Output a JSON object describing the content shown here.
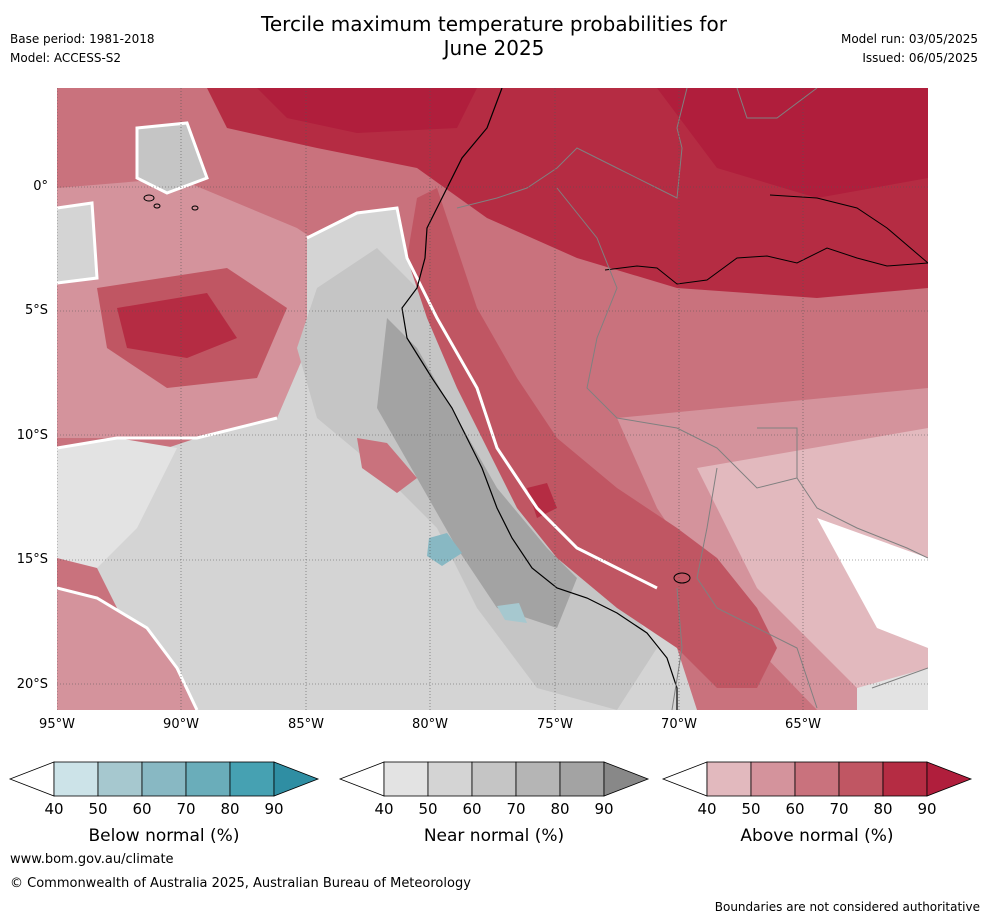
{
  "header": {
    "title_line1": "Tercile maximum temperature probabilities for",
    "title_line2": "June 2025",
    "base_period": "Base period: 1981-2018",
    "model": "Model: ACCESS-S2",
    "model_run": "Model run: 03/05/2025",
    "issued": "Issued: 06/05/2025"
  },
  "map": {
    "lat_labels": [
      "0°",
      "5°S",
      "10°S",
      "15°S",
      "20°S"
    ],
    "lon_labels": [
      "95°W",
      "90°W",
      "85°W",
      "80°W",
      "75°W",
      "70°W",
      "65°W"
    ],
    "extent": {
      "lon": [
        -95,
        -60
      ],
      "lat": [
        -21,
        4
      ]
    }
  },
  "colorbars": [
    {
      "label": "Below normal (%)",
      "ticks": [
        "40",
        "50",
        "60",
        "70",
        "80",
        "90"
      ],
      "colors": [
        "#ffffff",
        "#cce3e8",
        "#a6c8cf",
        "#88b8c3",
        "#6aadba",
        "#46a1b2",
        "#2f8ea3"
      ]
    },
    {
      "label": "Near normal (%)",
      "ticks": [
        "40",
        "50",
        "60",
        "70",
        "80",
        "90"
      ],
      "colors": [
        "#ffffff",
        "#e3e3e3",
        "#d4d4d4",
        "#c5c5c5",
        "#b5b5b5",
        "#a3a3a3",
        "#888888"
      ]
    },
    {
      "label": "Above normal (%)",
      "ticks": [
        "40",
        "50",
        "60",
        "70",
        "80",
        "90"
      ],
      "colors": [
        "#ffffff",
        "#e2b9be",
        "#d4939c",
        "#c9727d",
        "#c05663",
        "#b52c43",
        "#b01e3c"
      ]
    }
  ],
  "footer": {
    "website": "www.bom.gov.au/climate",
    "copyright": "© Commonwealth of Australia 2025, Australian Bureau of Meteorology",
    "disclaimer": "Boundaries are not considered authoritative"
  }
}
